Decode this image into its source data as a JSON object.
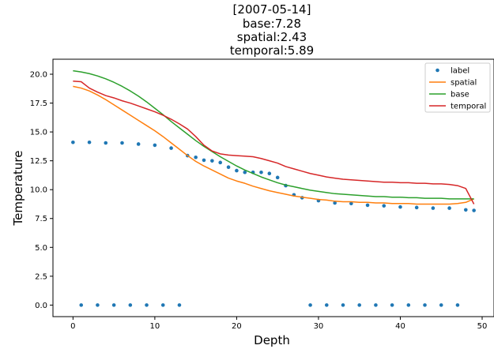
{
  "chart_data": {
    "type": "line",
    "title_lines": [
      "[2007-05-14]",
      "base:7.28",
      "spatial:2.43",
      "temporal:5.89"
    ],
    "xlabel": "Depth",
    "ylabel": "Temperature",
    "xlim": [
      -2.45,
      51.45
    ],
    "ylim": [
      -1.0,
      21.3
    ],
    "xticks": [
      0,
      10,
      20,
      30,
      40,
      50
    ],
    "yticks": [
      0.0,
      2.5,
      5.0,
      7.5,
      10.0,
      12.5,
      15.0,
      17.5,
      20.0
    ],
    "ytick_labels": [
      "0.0",
      "2.5",
      "5.0",
      "7.5",
      "10.0",
      "12.5",
      "15.0",
      "17.5",
      "20.0"
    ],
    "grid": false,
    "legend_position": "top-right",
    "series": [
      {
        "name": "label",
        "style": "points",
        "color": "#1f77b4",
        "x": [
          0,
          1,
          2,
          3,
          4,
          5,
          6,
          7,
          8,
          9,
          10,
          11,
          12,
          13,
          14,
          15,
          16,
          17,
          18,
          19,
          20,
          21,
          22,
          23,
          24,
          25,
          26,
          27,
          28,
          29,
          30,
          31,
          32,
          33,
          34,
          35,
          36,
          37,
          38,
          39,
          40,
          41,
          42,
          43,
          44,
          45,
          46,
          47,
          48,
          49
        ],
        "values": [
          14.1,
          0,
          14.1,
          0,
          14.05,
          0,
          14.05,
          0,
          13.95,
          0,
          13.85,
          0,
          13.6,
          0,
          12.95,
          12.8,
          12.55,
          12.5,
          12.35,
          11.95,
          11.65,
          11.5,
          11.5,
          11.5,
          11.4,
          11.05,
          10.35,
          9.55,
          9.3,
          0,
          9.05,
          0,
          8.85,
          0,
          8.8,
          0,
          8.65,
          0,
          8.6,
          0,
          8.5,
          0,
          8.45,
          0,
          8.4,
          0,
          8.4,
          0,
          8.25,
          8.2
        ]
      },
      {
        "name": "spatial",
        "style": "line",
        "color": "#ff7f0e",
        "x": [
          0,
          1,
          2,
          3,
          4,
          5,
          6,
          7,
          8,
          9,
          10,
          11,
          12,
          13,
          14,
          15,
          16,
          17,
          18,
          19,
          20,
          21,
          22,
          23,
          24,
          25,
          26,
          27,
          28,
          29,
          30,
          31,
          32,
          33,
          34,
          35,
          36,
          37,
          38,
          39,
          40,
          41,
          42,
          43,
          44,
          45,
          46,
          47,
          48,
          49
        ],
        "values": [
          18.95,
          18.8,
          18.55,
          18.2,
          17.8,
          17.35,
          16.9,
          16.45,
          16.0,
          15.55,
          15.1,
          14.6,
          14.05,
          13.5,
          12.95,
          12.45,
          12.05,
          11.7,
          11.35,
          11.0,
          10.75,
          10.55,
          10.3,
          10.1,
          9.9,
          9.75,
          9.6,
          9.45,
          9.35,
          9.25,
          9.15,
          9.1,
          9.0,
          8.95,
          8.95,
          8.9,
          8.9,
          8.85,
          8.85,
          8.8,
          8.8,
          8.8,
          8.75,
          8.75,
          8.75,
          8.75,
          8.75,
          8.8,
          8.9,
          9.2
        ]
      },
      {
        "name": "base",
        "style": "line",
        "color": "#2ca02c",
        "x": [
          0,
          1,
          2,
          3,
          4,
          5,
          6,
          7,
          8,
          9,
          10,
          11,
          12,
          13,
          14,
          15,
          16,
          17,
          18,
          19,
          20,
          21,
          22,
          23,
          24,
          25,
          26,
          27,
          28,
          29,
          30,
          31,
          32,
          33,
          34,
          35,
          36,
          37,
          38,
          39,
          40,
          41,
          42,
          43,
          44,
          45,
          46,
          47,
          48,
          49
        ],
        "values": [
          20.3,
          20.2,
          20.05,
          19.85,
          19.6,
          19.3,
          18.95,
          18.55,
          18.1,
          17.6,
          17.05,
          16.5,
          15.9,
          15.35,
          14.8,
          14.25,
          13.75,
          13.3,
          12.85,
          12.45,
          12.05,
          11.7,
          11.4,
          11.1,
          10.85,
          10.6,
          10.4,
          10.25,
          10.1,
          9.95,
          9.85,
          9.75,
          9.65,
          9.6,
          9.55,
          9.5,
          9.45,
          9.4,
          9.4,
          9.35,
          9.35,
          9.3,
          9.3,
          9.25,
          9.25,
          9.25,
          9.2,
          9.2,
          9.2,
          9.2
        ]
      },
      {
        "name": "temporal",
        "style": "line",
        "color": "#d62728",
        "x": [
          0,
          1,
          2,
          3,
          4,
          5,
          6,
          7,
          8,
          9,
          10,
          11,
          12,
          13,
          14,
          15,
          16,
          17,
          18,
          19,
          20,
          21,
          22,
          23,
          24,
          25,
          26,
          27,
          28,
          29,
          30,
          31,
          32,
          33,
          34,
          35,
          36,
          37,
          38,
          39,
          40,
          41,
          42,
          43,
          44,
          45,
          46,
          47,
          48,
          49
        ],
        "values": [
          19.4,
          19.35,
          18.8,
          18.45,
          18.15,
          17.95,
          17.7,
          17.5,
          17.25,
          17.0,
          16.75,
          16.45,
          16.1,
          15.7,
          15.25,
          14.6,
          13.85,
          13.35,
          13.1,
          13.0,
          12.95,
          12.9,
          12.85,
          12.7,
          12.5,
          12.3,
          12.0,
          11.8,
          11.6,
          11.4,
          11.25,
          11.1,
          11.0,
          10.9,
          10.85,
          10.8,
          10.75,
          10.7,
          10.65,
          10.65,
          10.6,
          10.6,
          10.55,
          10.55,
          10.5,
          10.5,
          10.45,
          10.35,
          10.1,
          8.75
        ]
      }
    ]
  }
}
